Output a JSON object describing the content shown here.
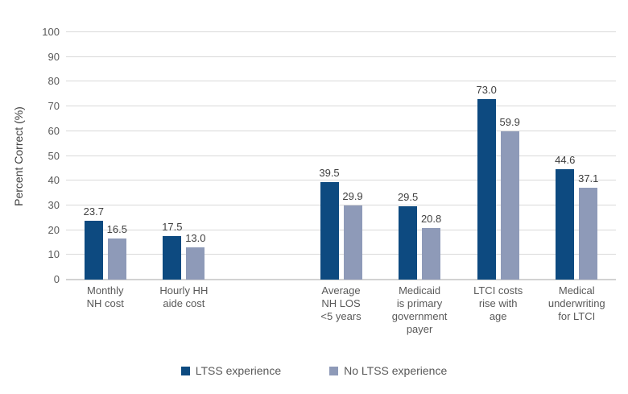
{
  "chart_data": {
    "type": "bar",
    "title": "",
    "xlabel": "",
    "ylabel": "Percent Correct (%)",
    "ylim": [
      0,
      100
    ],
    "ytick_step": 10,
    "grid": true,
    "legend_position": "bottom",
    "spacer_after_index": 1,
    "categories": [
      "Monthly\nNH cost",
      "Hourly HH\naide cost",
      "Average\nNH LOS\n<5 years",
      "Medicaid\nis primary\ngovernment\npayer",
      "LTCI costs\nrise with\nage",
      "Medical\nunderwriting\nfor LTCI"
    ],
    "series": [
      {
        "name": "LTSS experience",
        "color": "#0d4a80",
        "values": [
          23.7,
          17.5,
          39.5,
          29.5,
          73.0,
          44.6
        ]
      },
      {
        "name": "No LTSS experience",
        "color": "#8e9ab8",
        "values": [
          16.5,
          13.0,
          29.9,
          20.8,
          59.9,
          37.1
        ]
      }
    ]
  },
  "colors": {
    "gridline": "#d9d9d9",
    "axis_line": "#d2d2d2",
    "tick_label": "#595959",
    "data_label": "#404040"
  }
}
